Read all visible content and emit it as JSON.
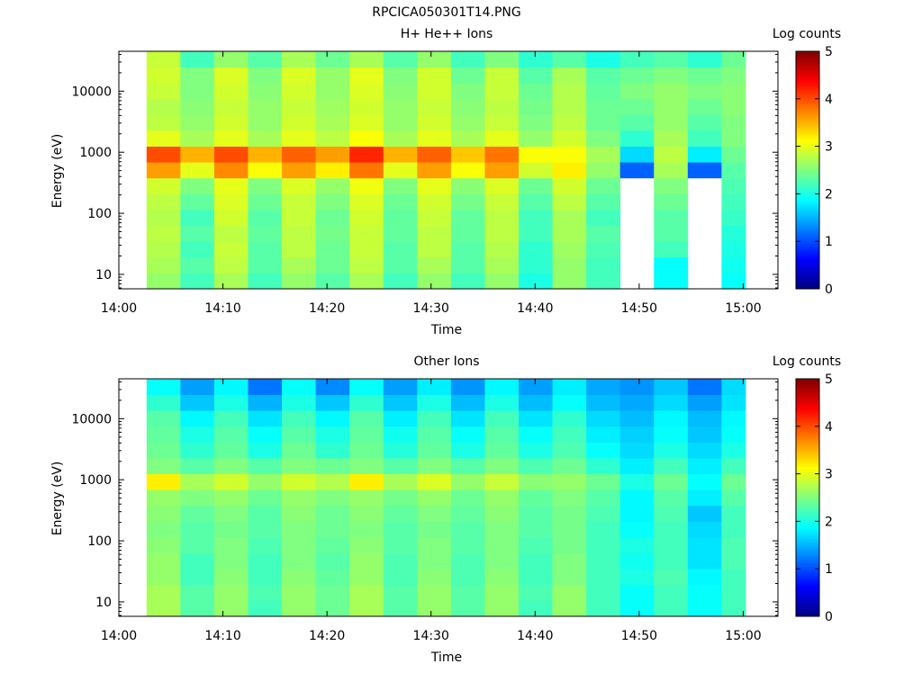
{
  "figure_title": "RPCICA050301T14.PNG",
  "chart_data": [
    {
      "type": "heatmap",
      "title": "H+ He++ Ions",
      "xlabel": "Time",
      "ylabel": "Energy (eV)",
      "y_scale": "log",
      "x_ticks": [
        "14:00",
        "14:10",
        "14:20",
        "14:30",
        "14:40",
        "14:50",
        "15:00"
      ],
      "y_ticks": [
        "10",
        "100",
        "1000",
        "10000"
      ],
      "colorbar": {
        "label": "Log counts",
        "range": [
          0,
          5
        ],
        "ticks": [
          "0",
          "1",
          "2",
          "3",
          "4",
          "5"
        ],
        "colormap": "jet"
      },
      "grid": false,
      "columns": [
        {
          "start": "14:02:40",
          "end": "14:05:55",
          "profile": [
            2.6,
            2.7,
            2.75,
            2.8,
            2.75,
            2.8,
            2.9,
            3.6,
            4.0,
            3.0,
            2.8,
            2.75,
            2.85,
            2.9,
            2.85
          ]
        },
        {
          "start": "14:05:55",
          "end": "14:09:10",
          "profile": [
            2.2,
            2.3,
            2.2,
            2.3,
            2.2,
            2.35,
            2.5,
            3.0,
            3.5,
            2.7,
            2.6,
            2.55,
            2.5,
            2.5,
            2.2
          ]
        },
        {
          "start": "14:09:10",
          "end": "14:12:25",
          "profile": [
            2.7,
            2.8,
            2.85,
            2.8,
            2.9,
            2.95,
            3.0,
            3.7,
            4.0,
            3.0,
            2.9,
            2.85,
            2.9,
            2.95,
            2.6
          ]
        },
        {
          "start": "14:12:25",
          "end": "14:15:40",
          "profile": [
            2.2,
            2.3,
            2.3,
            2.35,
            2.3,
            2.4,
            2.5,
            3.1,
            3.5,
            2.7,
            2.6,
            2.6,
            2.55,
            2.5,
            2.3
          ]
        },
        {
          "start": "14:15:40",
          "end": "14:18:55",
          "profile": [
            2.6,
            2.7,
            2.8,
            2.8,
            2.85,
            2.85,
            2.95,
            3.6,
            3.9,
            3.0,
            2.9,
            2.85,
            2.9,
            2.95,
            2.7
          ]
        },
        {
          "start": "14:18:55",
          "end": "14:22:10",
          "profile": [
            2.3,
            2.4,
            2.4,
            2.45,
            2.4,
            2.5,
            2.6,
            3.2,
            3.6,
            2.8,
            2.7,
            2.65,
            2.6,
            2.6,
            2.4
          ]
        },
        {
          "start": "14:22:10",
          "end": "14:25:25",
          "profile": [
            2.7,
            2.8,
            2.85,
            2.85,
            2.9,
            2.95,
            3.05,
            3.8,
            4.2,
            3.1,
            2.95,
            2.9,
            2.95,
            3.0,
            2.7
          ]
        },
        {
          "start": "14:25:25",
          "end": "14:28:40",
          "profile": [
            2.2,
            2.3,
            2.3,
            2.35,
            2.35,
            2.4,
            2.5,
            3.0,
            3.5,
            2.7,
            2.6,
            2.6,
            2.55,
            2.5,
            2.3
          ]
        },
        {
          "start": "14:28:40",
          "end": "14:31:55",
          "profile": [
            2.6,
            2.7,
            2.8,
            2.8,
            2.85,
            2.9,
            3.0,
            3.6,
            3.9,
            3.0,
            2.9,
            2.85,
            2.9,
            2.9,
            2.6
          ]
        },
        {
          "start": "14:31:55",
          "end": "14:35:10",
          "profile": [
            2.2,
            2.3,
            2.3,
            2.35,
            2.35,
            2.45,
            2.55,
            3.1,
            3.4,
            2.7,
            2.6,
            2.55,
            2.5,
            2.4,
            2.2
          ]
        },
        {
          "start": "14:35:10",
          "end": "14:38:25",
          "profile": [
            2.6,
            2.7,
            2.75,
            2.8,
            2.8,
            2.85,
            2.95,
            3.6,
            3.8,
            3.0,
            2.85,
            2.8,
            2.85,
            2.85,
            2.5
          ]
        },
        {
          "start": "14:38:25",
          "end": "14:41:40",
          "profile": [
            2.0,
            2.1,
            2.1,
            2.2,
            2.2,
            2.3,
            2.4,
            2.9,
            3.1,
            2.6,
            2.5,
            2.45,
            2.4,
            2.3,
            2.1
          ]
        },
        {
          "start": "14:41:40",
          "end": "14:44:55",
          "profile": [
            2.6,
            2.6,
            2.65,
            2.7,
            2.7,
            2.8,
            2.9,
            3.2,
            3.1,
            2.9,
            2.8,
            2.75,
            2.75,
            2.7,
            2.3
          ]
        },
        {
          "start": "14:44:55",
          "end": "14:48:10",
          "profile": [
            2.2,
            2.2,
            2.25,
            2.3,
            2.2,
            2.3,
            2.4,
            2.6,
            2.7,
            2.5,
            2.4,
            2.4,
            2.35,
            2.3,
            2.0
          ]
        },
        {
          "start": "14:48:10",
          "end": "14:51:25",
          "profile": [
            null,
            null,
            null,
            null,
            null,
            null,
            null,
            1.1,
            1.7,
            2.1,
            2.3,
            2.4,
            2.5,
            2.4,
            2.2
          ]
        },
        {
          "start": "14:51:25",
          "end": "14:54:40",
          "profile": [
            1.9,
            1.9,
            2.2,
            2.3,
            2.3,
            2.4,
            2.5,
            2.7,
            2.8,
            2.7,
            2.6,
            2.6,
            2.6,
            2.5,
            2.3
          ]
        },
        {
          "start": "14:54:40",
          "end": "14:57:55",
          "profile": [
            null,
            null,
            null,
            null,
            null,
            null,
            null,
            1.1,
            1.8,
            2.2,
            2.3,
            2.4,
            2.5,
            2.4,
            2.1
          ]
        },
        {
          "start": "14:57:55",
          "end": "15:01:10",
          "profile": [
            1.9,
            1.95,
            2.0,
            2.05,
            2.15,
            2.2,
            2.25,
            2.3,
            2.4,
            2.5,
            2.5,
            2.55,
            2.55,
            2.5,
            2.4
          ]
        }
      ]
    },
    {
      "type": "heatmap",
      "title": "Other Ions",
      "xlabel": "Time",
      "ylabel": "Energy (eV)",
      "y_scale": "log",
      "x_ticks": [
        "14:00",
        "14:10",
        "14:20",
        "14:30",
        "14:40",
        "14:50",
        "15:00"
      ],
      "y_ticks": [
        "10",
        "100",
        "1000",
        "10000"
      ],
      "colorbar": {
        "label": "Log counts",
        "range": [
          0,
          5
        ],
        "ticks": [
          "0",
          "1",
          "2",
          "3",
          "4",
          "5"
        ],
        "colormap": "jet"
      },
      "grid": false,
      "columns": [
        {
          "start": "14:02:40",
          "end": "14:05:55",
          "profile": [
            2.7,
            2.7,
            2.6,
            2.6,
            2.55,
            2.5,
            2.55,
            2.6,
            3.2,
            2.5,
            2.4,
            2.35,
            2.3,
            2.1,
            1.9
          ]
        },
        {
          "start": "14:05:55",
          "end": "14:09:10",
          "profile": [
            2.3,
            2.3,
            2.2,
            2.2,
            2.3,
            2.3,
            2.35,
            2.5,
            2.7,
            2.3,
            2.1,
            2.0,
            1.85,
            1.6,
            1.4
          ]
        },
        {
          "start": "14:09:10",
          "end": "14:12:25",
          "profile": [
            2.6,
            2.6,
            2.55,
            2.5,
            2.5,
            2.45,
            2.5,
            2.6,
            2.9,
            2.5,
            2.35,
            2.3,
            2.2,
            2.0,
            1.85
          ]
        },
        {
          "start": "14:12:25",
          "end": "14:15:40",
          "profile": [
            2.2,
            2.25,
            2.2,
            2.2,
            2.25,
            2.3,
            2.3,
            2.4,
            2.6,
            2.3,
            2.0,
            1.9,
            1.75,
            1.5,
            1.2
          ]
        },
        {
          "start": "14:15:40",
          "end": "14:18:55",
          "profile": [
            2.6,
            2.6,
            2.55,
            2.5,
            2.5,
            2.5,
            2.55,
            2.6,
            2.9,
            2.5,
            2.4,
            2.3,
            2.2,
            2.0,
            1.9
          ]
        },
        {
          "start": "14:18:55",
          "end": "14:22:10",
          "profile": [
            2.4,
            2.4,
            2.35,
            2.3,
            2.35,
            2.4,
            2.4,
            2.5,
            2.75,
            2.4,
            2.1,
            2.0,
            1.85,
            1.6,
            1.3
          ]
        },
        {
          "start": "14:22:10",
          "end": "14:25:25",
          "profile": [
            2.7,
            2.7,
            2.6,
            2.6,
            2.55,
            2.5,
            2.55,
            2.6,
            3.2,
            2.5,
            2.4,
            2.35,
            2.3,
            2.1,
            1.9
          ]
        },
        {
          "start": "14:25:25",
          "end": "14:28:40",
          "profile": [
            2.3,
            2.3,
            2.25,
            2.25,
            2.3,
            2.3,
            2.35,
            2.45,
            2.7,
            2.3,
            2.05,
            1.95,
            1.8,
            1.6,
            1.4
          ]
        },
        {
          "start": "14:28:40",
          "end": "14:31:55",
          "profile": [
            2.6,
            2.6,
            2.55,
            2.5,
            2.5,
            2.45,
            2.5,
            2.6,
            2.95,
            2.5,
            2.35,
            2.3,
            2.2,
            2.0,
            1.8
          ]
        },
        {
          "start": "14:31:55",
          "end": "14:35:10",
          "profile": [
            2.3,
            2.3,
            2.25,
            2.25,
            2.3,
            2.3,
            2.35,
            2.4,
            2.6,
            2.3,
            2.0,
            1.9,
            1.75,
            1.55,
            1.35
          ]
        },
        {
          "start": "14:35:10",
          "end": "14:38:25",
          "profile": [
            2.6,
            2.6,
            2.55,
            2.5,
            2.5,
            2.5,
            2.55,
            2.6,
            2.85,
            2.5,
            2.35,
            2.3,
            2.2,
            2.0,
            1.85
          ]
        },
        {
          "start": "14:38:25",
          "end": "14:41:40",
          "profile": [
            2.2,
            2.25,
            2.2,
            2.2,
            2.25,
            2.3,
            2.3,
            2.35,
            2.55,
            2.25,
            2.0,
            1.9,
            1.75,
            1.55,
            1.4
          ]
        },
        {
          "start": "14:41:40",
          "end": "14:44:55",
          "profile": [
            2.6,
            2.6,
            2.5,
            2.5,
            2.45,
            2.45,
            2.45,
            2.5,
            2.6,
            2.4,
            2.25,
            2.2,
            2.1,
            1.9,
            1.8
          ]
        },
        {
          "start": "14:44:55",
          "end": "14:48:10",
          "profile": [
            2.2,
            2.2,
            2.2,
            2.2,
            2.2,
            2.2,
            2.25,
            2.3,
            2.4,
            2.1,
            1.9,
            1.8,
            1.7,
            1.55,
            1.45
          ]
        },
        {
          "start": "14:48:10",
          "end": "14:51:25",
          "profile": [
            1.9,
            1.9,
            2.0,
            1.95,
            2.0,
            1.9,
            1.85,
            1.85,
            2.0,
            1.8,
            1.7,
            1.65,
            1.55,
            1.45,
            1.35
          ]
        },
        {
          "start": "14:51:25",
          "end": "14:54:40",
          "profile": [
            2.2,
            2.2,
            2.25,
            2.2,
            2.2,
            2.2,
            2.25,
            2.3,
            2.4,
            2.2,
            2.0,
            1.9,
            1.85,
            1.7,
            1.6
          ]
        },
        {
          "start": "14:54:40",
          "end": "14:57:55",
          "profile": [
            1.9,
            1.9,
            1.85,
            1.75,
            1.75,
            1.7,
            1.6,
            1.8,
            1.9,
            1.8,
            1.7,
            1.6,
            1.55,
            1.4,
            1.2
          ]
        },
        {
          "start": "14:57:55",
          "end": "15:01:10",
          "profile": [
            2.2,
            2.2,
            2.2,
            2.25,
            2.25,
            2.2,
            2.2,
            2.3,
            2.4,
            2.2,
            2.0,
            1.9,
            1.85,
            1.75,
            1.7
          ]
        }
      ]
    }
  ]
}
